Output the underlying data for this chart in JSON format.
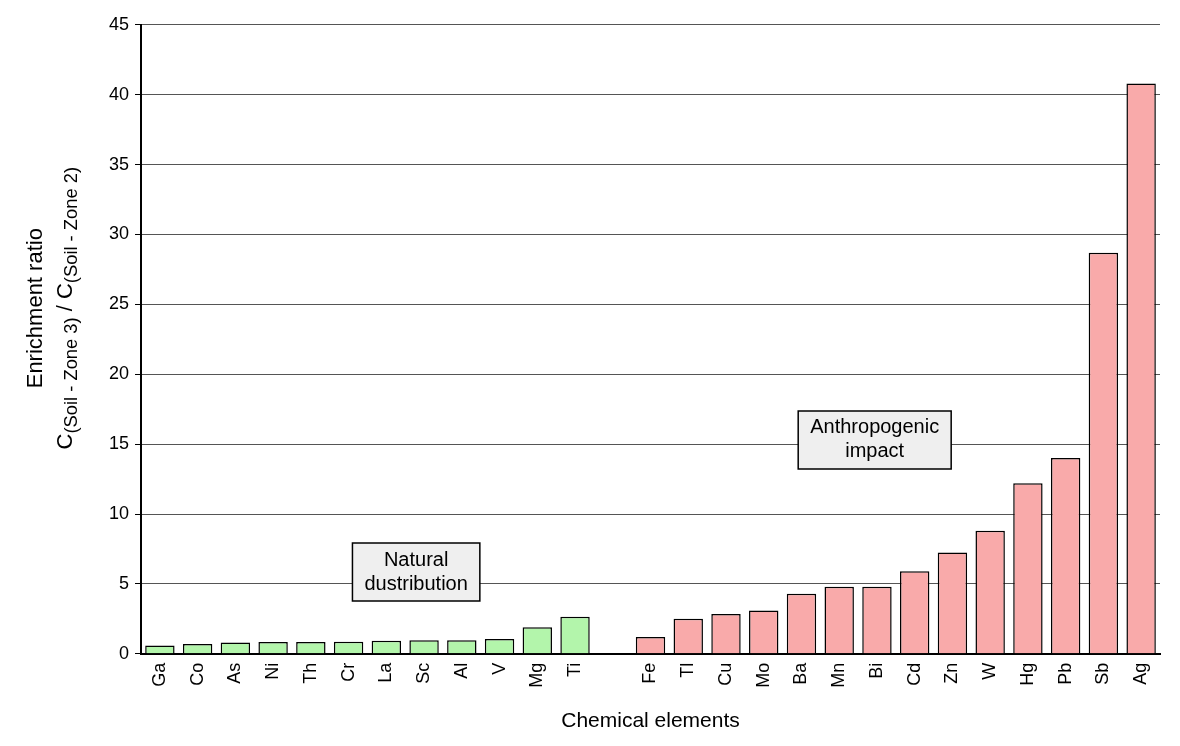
{
  "chart_data": {
    "type": "bar",
    "xlabel": "Chemical elements",
    "ylabel": "Enrichment ratio\nC$_{(Soil - Zone 3)}$ / C$_{(Soil - Zone 2)}$",
    "categories": [
      "Ga",
      "Co",
      "As",
      "Ni",
      "Th",
      "Cr",
      "La",
      "Sc",
      "Al",
      "V",
      "Mg",
      "Ti",
      null,
      "Fe",
      "Tl",
      "Cu",
      "Mo",
      "Ba",
      "Mn",
      "Bi",
      "Cd",
      "Zn",
      "W",
      "Hg",
      "Pb",
      "Sb",
      "Ag"
    ],
    "values": [
      0.6,
      0.7,
      0.8,
      0.85,
      0.85,
      0.87,
      0.93,
      0.97,
      0.97,
      1.05,
      1.9,
      2.65,
      null,
      1.2,
      2.5,
      2.85,
      3.1,
      4.3,
      4.8,
      4.8,
      5.9,
      7.25,
      8.8,
      12.2,
      14.0,
      28.7,
      40.8
    ],
    "colors": [
      "#b3f5ab",
      "#b3f5ab",
      "#b3f5ab",
      "#b3f5ab",
      "#b3f5ab",
      "#b3f5ab",
      "#b3f5ab",
      "#b3f5ab",
      "#b3f5ab",
      "#b3f5ab",
      "#b3f5ab",
      "#b3f5ab",
      null,
      "#f9aaaa",
      "#f9aaaa",
      "#f9aaaa",
      "#f9aaaa",
      "#f9aaaa",
      "#f9aaaa",
      "#f9aaaa",
      "#f9aaaa",
      "#f9aaaa",
      "#f9aaaa",
      "#f9aaaa",
      "#f9aaaa",
      "#f9aaaa",
      "#f9aaaa"
    ],
    "ylim": [
      0,
      45
    ],
    "yticks": [
      0,
      5,
      10,
      15,
      20,
      25,
      30,
      35,
      40,
      45
    ],
    "grid": "y",
    "legend": false,
    "annotations": [
      "Natural dustribution",
      "Anthropogenic impact"
    ]
  }
}
